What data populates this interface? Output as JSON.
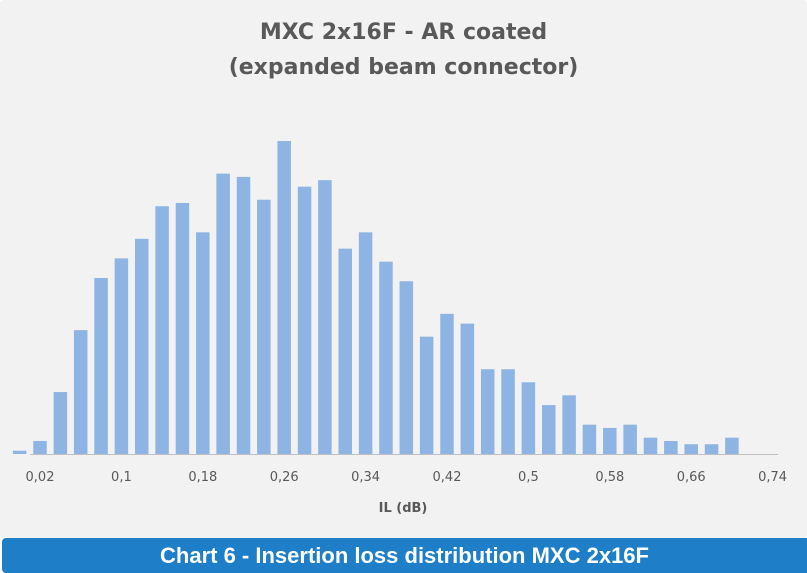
{
  "chart_data": {
    "type": "bar",
    "title": "MXC 2x16F - AR coated",
    "subtitle": "(expanded beam connector)",
    "xlabel": "IL (dB)",
    "ylabel": "",
    "grid": false,
    "legend": "none",
    "bar_color": "#8db4e2",
    "x_ticks": [
      "0,02",
      "0,1",
      "0,18",
      "0,26",
      "0,34",
      "0,42",
      "0,5",
      "0,58",
      "0,66",
      "0,74"
    ],
    "x_range": [
      0.0,
      0.74
    ],
    "ylim": [
      0,
      100
    ],
    "series": [
      {
        "values": [
          [
            0.0,
            1
          ],
          [
            0.02,
            4
          ],
          [
            0.04,
            19
          ],
          [
            0.06,
            38
          ],
          [
            0.08,
            54
          ],
          [
            0.1,
            60
          ],
          [
            0.12,
            66
          ],
          [
            0.14,
            76
          ],
          [
            0.16,
            77
          ],
          [
            0.18,
            68
          ],
          [
            0.2,
            86
          ],
          [
            0.22,
            85
          ],
          [
            0.24,
            78
          ],
          [
            0.26,
            96
          ],
          [
            0.28,
            82
          ],
          [
            0.3,
            84
          ],
          [
            0.32,
            63
          ],
          [
            0.34,
            68
          ],
          [
            0.36,
            59
          ],
          [
            0.38,
            53
          ],
          [
            0.4,
            36
          ],
          [
            0.42,
            43
          ],
          [
            0.44,
            40
          ],
          [
            0.46,
            26
          ],
          [
            0.48,
            26
          ],
          [
            0.5,
            22
          ],
          [
            0.52,
            15
          ],
          [
            0.54,
            18
          ],
          [
            0.56,
            9
          ],
          [
            0.58,
            8
          ],
          [
            0.6,
            9
          ],
          [
            0.62,
            5
          ],
          [
            0.64,
            4
          ],
          [
            0.66,
            3
          ],
          [
            0.68,
            3
          ],
          [
            0.7,
            5
          ]
        ]
      }
    ]
  },
  "caption": "Chart 6 - Insertion loss distribution MXC 2x16F"
}
